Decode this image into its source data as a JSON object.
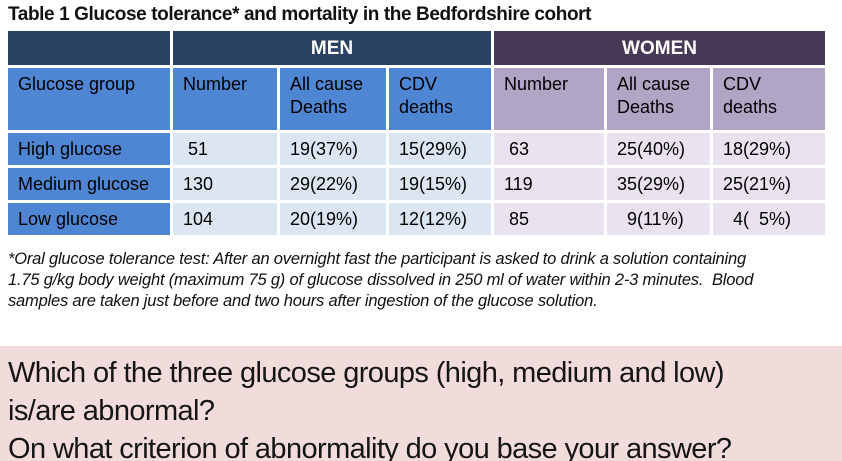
{
  "title": "Table 1 Glucose tolerance* and mortality in the Bedfordshire cohort",
  "table": {
    "men_label": "MEN",
    "women_label": "WOMEN",
    "glucose_group_header": "Glucose group",
    "men_cols": [
      "Number",
      "All cause\nDeaths",
      "CDV\ndeaths"
    ],
    "women_cols": [
      "Number",
      "All cause\nDeaths",
      "CDV\ndeaths"
    ],
    "rows": [
      {
        "label": "High glucose",
        "men": [
          " 51",
          "19(37%)",
          "15(29%)"
        ],
        "women": [
          " 63",
          "25(40%)",
          "18(29%)"
        ]
      },
      {
        "label": "Medium glucose",
        "men": [
          "130",
          "29(22%)",
          "19(15%)"
        ],
        "women": [
          "119",
          "35(29%)",
          "25(21%)"
        ]
      },
      {
        "label": "Low glucose",
        "men": [
          "104",
          "20(19%)",
          "12(12%)"
        ],
        "women": [
          " 85",
          "  9(11%)",
          "  4(  5%)"
        ]
      }
    ]
  },
  "footnote": "*Oral glucose tolerance test: After an overnight fast the participant is asked to drink a solution containing\n1.75 g/kg body weight (maximum 75 g) of glucose dissolved in 250 ml of water within 2-3 minutes.  Blood\nsamples are taken just before and two hours after ingestion of the glucose solution.",
  "question": "Which of the three glucose groups (high, medium and low)\nis/are abnormal?\nOn what criterion of abnormality do you base your answer?",
  "colors": {
    "men_header_bg": "#2a4163",
    "women_header_bg": "#483a56",
    "men_accent_bg": "#4f86d4",
    "women_accent_bg": "#b1a5c6",
    "men_data_bg": "#dce6f2",
    "women_data_bg": "#e8e3ee",
    "question_bg": "#f2dcdb",
    "header_text": "#ffffff"
  }
}
